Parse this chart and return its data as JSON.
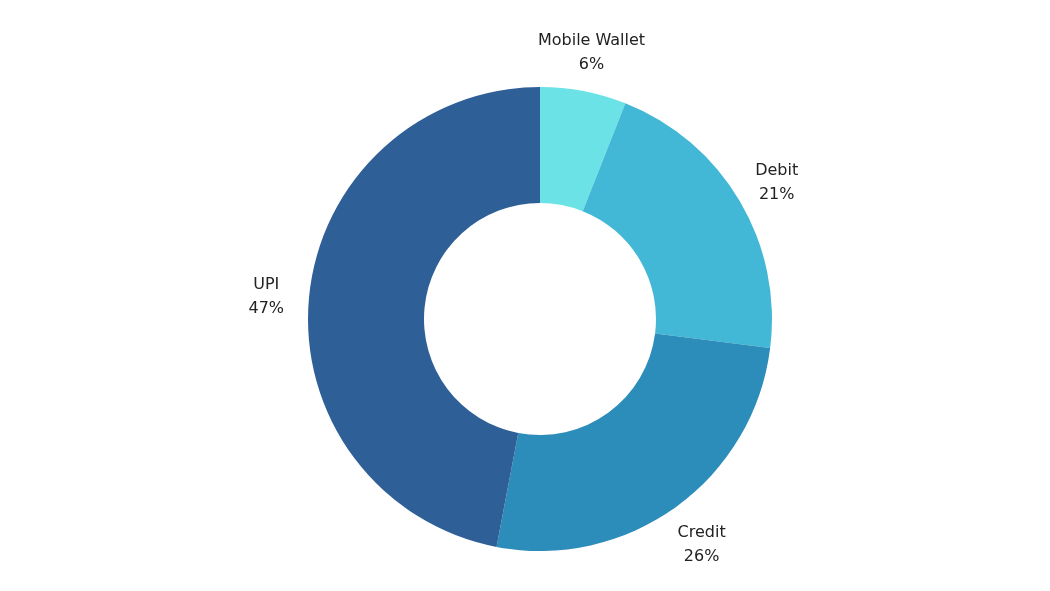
{
  "chart_data": {
    "type": "donut",
    "categories": [
      "Mobile Wallet",
      "Debit",
      "Credit",
      "UPI"
    ],
    "values": [
      6,
      21,
      26,
      47
    ],
    "colors": [
      "#6ae2e6",
      "#43b7d6",
      "#2c8cba",
      "#2e5f96"
    ],
    "value_labels": [
      "6%",
      "21%",
      "26%",
      "47%"
    ]
  }
}
